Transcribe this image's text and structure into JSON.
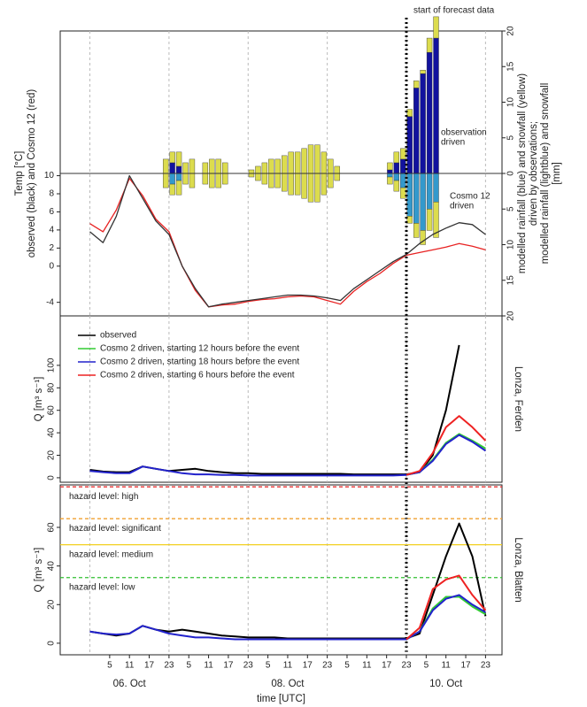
{
  "chart_data": [
    {
      "type": "bar_line",
      "ylabel": [
        "Temp [°C]",
        "observed (black) and Cosmo 12 (red)"
      ],
      "ylim": [
        -5.5,
        26
      ],
      "yticks": [
        -4,
        0,
        2,
        4,
        6,
        8,
        10
      ],
      "y2label": [
        "modelled rainfall (blue) and snowfall (yellow)",
        "driven by observations;",
        "modelled rainfall (lightblue) and snowfall",
        "[mm]"
      ],
      "y2lim": [
        -20,
        20
      ],
      "y2ticks": [
        20,
        15,
        10,
        5,
        0,
        {
          "value": -5,
          "label": "5"
        },
        {
          "value": -10,
          "label": "10"
        },
        {
          "value": -15,
          "label": "15"
        },
        {
          "value": -20,
          "label": "20"
        }
      ],
      "xlim": [
        -10,
        124
      ],
      "xgrid": [
        -1,
        23,
        47,
        71,
        95,
        119
      ],
      "forecast_start": 95,
      "forecast_label": "start of forecast data",
      "annotations": [
        [
          "observation",
          "driven"
        ],
        [
          "Cosmo 12",
          "driven"
        ]
      ],
      "bar_x": [
        22,
        24,
        26,
        28,
        30,
        32,
        34,
        36,
        38,
        40,
        42,
        44,
        46,
        48,
        50,
        52,
        54,
        56,
        58,
        60,
        62,
        64,
        66,
        68,
        70,
        72,
        74,
        76,
        78,
        80,
        82,
        84,
        86,
        88,
        90,
        92,
        94,
        96,
        98,
        100,
        102,
        104
      ],
      "bar_series": [
        {
          "color": "#12129e",
          "axis": "y2",
          "values": [
            0,
            1.5,
            1,
            0,
            0,
            0,
            0,
            0,
            0,
            0,
            0,
            0,
            0,
            0,
            0,
            0,
            0,
            0,
            0,
            0,
            0,
            0,
            0,
            0,
            0,
            0,
            0,
            0,
            0,
            0,
            0,
            0,
            0,
            0,
            0.5,
            1.5,
            2,
            8,
            12,
            14,
            17,
            19
          ]
        },
        {
          "color": "#dcdc4e",
          "axis": "y2",
          "values": [
            2,
            1.5,
            2,
            1.5,
            2,
            0,
            1.5,
            2,
            2,
            1.5,
            0,
            0,
            0,
            0.5,
            1,
            1.5,
            2,
            2,
            2.5,
            3,
            3,
            3.5,
            4,
            4,
            3,
            2,
            1,
            0,
            0,
            0,
            0,
            0,
            0,
            0,
            1,
            1.5,
            1.5,
            1,
            1,
            0.5,
            2,
            3
          ]
        },
        {
          "color": "#3399cc",
          "axis": "y2",
          "values": [
            0,
            -1.5,
            -1,
            0,
            0,
            0,
            0,
            0,
            0,
            0,
            0,
            0,
            0,
            0,
            0,
            0,
            0,
            0,
            0,
            0,
            0,
            0,
            0,
            0,
            0,
            0,
            0,
            0,
            0,
            0,
            0,
            0,
            0,
            0,
            -0.5,
            -1,
            -2,
            -6,
            -7,
            -8,
            -5,
            -4
          ]
        },
        {
          "color": "#dcdc4e",
          "axis": "y2",
          "values": [
            -2,
            -1.5,
            -2,
            -1.5,
            -2,
            0,
            -1.5,
            -2,
            -2,
            -1.5,
            0,
            0,
            0,
            -0.5,
            -1,
            -1.5,
            -2,
            -2,
            -2.5,
            -3,
            -3,
            -3.5,
            -4,
            -4,
            -3,
            -2,
            -1,
            0,
            0,
            0,
            0,
            0,
            0,
            0,
            -1,
            -1.5,
            -1.5,
            -1,
            -2,
            -2,
            -3,
            -5
          ]
        }
      ],
      "x": [
        -1,
        3,
        7,
        11,
        15,
        19,
        23,
        27,
        31,
        35,
        39,
        43,
        47,
        51,
        55,
        59,
        63,
        67,
        71,
        75,
        79,
        83,
        87,
        91,
        95,
        99,
        103,
        107,
        111,
        115,
        119
      ],
      "series": [
        {
          "color": "#e82222",
          "values": [
            4.7,
            3.8,
            6.2,
            9.7,
            7.8,
            5.2,
            3.8,
            0,
            -2.7,
            -4.5,
            -4.3,
            -4.2,
            -3.9,
            -3.7,
            -3.6,
            -3.4,
            -3.3,
            -3.4,
            -3.8,
            -4.2,
            -2.8,
            -1.7,
            -0.8,
            0.3,
            1.2,
            1.5,
            1.8,
            2.1,
            2.5,
            2.2,
            1.8
          ]
        },
        {
          "color": "#333333",
          "values": [
            3.8,
            2.6,
            5.5,
            10,
            7.5,
            5,
            3.5,
            0,
            -2.5,
            -4.5,
            -4.2,
            -4,
            -3.8,
            -3.6,
            -3.4,
            -3.2,
            -3.2,
            -3.3,
            -3.5,
            -3.8,
            -2.5,
            -1.5,
            -0.5,
            0.5,
            1.3,
            2.5,
            3.5,
            4.2,
            4.8,
            4.6,
            3.5
          ]
        }
      ]
    },
    {
      "type": "line",
      "ylabel": "Q [m³ s⁻¹]",
      "right_label": "Lonza, Ferden",
      "ylim": [
        -4,
        144
      ],
      "yticks": [
        0,
        20,
        40,
        60,
        80,
        100
      ],
      "xlim": [
        -10,
        124
      ],
      "xgrid": [
        -1,
        23,
        47,
        71,
        95,
        119
      ],
      "legend": "upper left",
      "x": [
        -1,
        3,
        7,
        11,
        15,
        19,
        23,
        27,
        31,
        35,
        39,
        43,
        47,
        51,
        55,
        59,
        63,
        67,
        71,
        75,
        79,
        83,
        87,
        91,
        95,
        99,
        103,
        107,
        111,
        115,
        119
      ],
      "series": [
        {
          "name": "observed",
          "color": "#000000",
          "values": [
            7,
            5.5,
            5,
            5,
            10,
            8,
            6,
            7,
            8,
            6,
            5,
            4,
            4,
            3.5,
            3.5,
            3.5,
            3.5,
            3.5,
            3.5,
            3.5,
            3,
            3,
            3,
            3,
            3,
            5,
            20,
            60,
            118,
            null,
            null
          ]
        },
        {
          "name": "Cosmo 2 driven, starting 12 hours before the event",
          "color": "#33cc33",
          "values": [
            null,
            null,
            null,
            null,
            null,
            null,
            null,
            null,
            null,
            null,
            null,
            null,
            null,
            null,
            null,
            null,
            null,
            null,
            null,
            null,
            null,
            null,
            null,
            null,
            2.5,
            5,
            16,
            31,
            39,
            33,
            26
          ]
        },
        {
          "name": "Cosmo 2 driven, starting 18 hours before the event",
          "color": "#2222cc",
          "values": [
            6,
            5,
            4,
            4,
            10,
            8,
            6,
            4,
            3,
            3,
            2.5,
            2.5,
            2,
            2,
            2,
            2,
            2,
            2,
            2,
            2,
            2,
            2,
            2,
            2,
            2.5,
            5,
            15,
            30,
            38,
            32,
            24
          ]
        },
        {
          "name": "Cosmo 2 driven, starting 6 hours before the event",
          "color": "#ee2222",
          "values": [
            null,
            null,
            null,
            null,
            null,
            null,
            null,
            null,
            null,
            null,
            null,
            null,
            null,
            null,
            null,
            null,
            null,
            null,
            null,
            null,
            null,
            null,
            null,
            null,
            2.5,
            6,
            22,
            45,
            55,
            45,
            33
          ]
        }
      ]
    },
    {
      "type": "line",
      "ylabel": "Q [m³ s⁻¹]",
      "right_label": "Lonza, Blatten",
      "ylim": [
        -6,
        82
      ],
      "yticks": [
        0,
        20,
        40,
        60
      ],
      "xlim": [
        -10,
        124
      ],
      "xgrid": [
        -1,
        23,
        47,
        71,
        95,
        119
      ],
      "xticks": [
        5,
        11,
        17,
        23,
        {
          "value": 29,
          "label": "5"
        },
        {
          "value": 35,
          "label": "11"
        },
        {
          "value": 41,
          "label": "17"
        },
        {
          "value": 47,
          "label": "23"
        },
        {
          "value": 53,
          "label": "5"
        },
        {
          "value": 59,
          "label": "11"
        },
        {
          "value": 65,
          "label": "17"
        },
        {
          "value": 71,
          "label": "23"
        },
        {
          "value": 77,
          "label": "5"
        },
        {
          "value": 83,
          "label": "11"
        },
        {
          "value": 89,
          "label": "17"
        },
        {
          "value": 95,
          "label": "23"
        },
        {
          "value": 101,
          "label": "5"
        },
        {
          "value": 107,
          "label": "11"
        },
        {
          "value": 113,
          "label": "17"
        },
        {
          "value": 119,
          "label": "23"
        }
      ],
      "date_labels": [
        {
          "value": 11,
          "label": "06. Oct"
        },
        {
          "value": 59,
          "label": "08. Oct"
        },
        {
          "value": 107,
          "label": "10. Oct"
        }
      ],
      "xlabel": "time [UTC]",
      "hlines": [
        {
          "label": "hazard level: high",
          "value": 81,
          "color": "#e83030",
          "dash": true
        },
        {
          "label": "hazard level: significant",
          "value": 64.5,
          "color": "#f0a030",
          "dash": true
        },
        {
          "label": "hazard level: medium",
          "value": 51,
          "color": "#f2d020",
          "dash": false
        },
        {
          "label": "hazard level: low",
          "value": 34,
          "color": "#30c030",
          "dash": true
        }
      ],
      "x": [
        -1,
        3,
        7,
        11,
        15,
        19,
        23,
        27,
        31,
        35,
        39,
        43,
        47,
        51,
        55,
        59,
        63,
        67,
        71,
        75,
        79,
        83,
        87,
        91,
        95,
        99,
        103,
        107,
        111,
        115,
        119
      ],
      "series": [
        {
          "color": "#000000",
          "values": [
            6,
            5,
            4,
            5,
            9,
            7,
            6,
            7,
            6,
            5,
            4,
            3.5,
            3,
            3,
            3,
            2.5,
            2.5,
            2.5,
            2.5,
            2.5,
            2.5,
            2.5,
            2.5,
            2.5,
            2.5,
            5,
            25,
            45,
            62,
            45,
            14
          ]
        },
        {
          "color": "#33cc33",
          "values": [
            null,
            null,
            null,
            null,
            null,
            null,
            null,
            null,
            null,
            null,
            null,
            null,
            null,
            null,
            null,
            null,
            null,
            null,
            null,
            null,
            null,
            null,
            null,
            null,
            2,
            6,
            18,
            24,
            24,
            19,
            15
          ]
        },
        {
          "color": "#2222cc",
          "values": [
            6,
            5,
            4.5,
            5,
            9,
            7,
            5,
            4,
            3,
            3,
            2.5,
            2,
            2,
            2,
            2,
            2,
            2,
            2,
            2,
            2,
            2,
            2,
            2,
            2,
            2,
            6,
            17,
            23,
            25,
            20,
            16
          ]
        },
        {
          "color": "#ee2222",
          "values": [
            null,
            null,
            null,
            null,
            null,
            null,
            null,
            null,
            null,
            null,
            null,
            null,
            null,
            null,
            null,
            null,
            null,
            null,
            null,
            null,
            null,
            null,
            null,
            null,
            2,
            8,
            28,
            33,
            35,
            25,
            17
          ]
        }
      ]
    }
  ]
}
